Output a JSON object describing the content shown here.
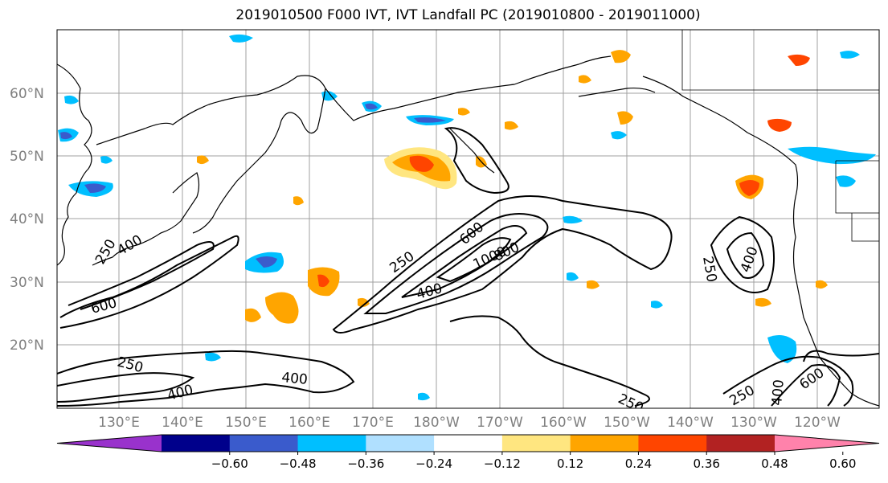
{
  "title": "2019010500 F000 IVT, IVT Landfall PC (2019010800 - 2019011000)",
  "lat_labels": [
    "60°N",
    "50°N",
    "40°N",
    "30°N",
    "20°N"
  ],
  "lon_labels": [
    "130°E",
    "140°E",
    "150°E",
    "160°E",
    "170°E",
    "180°W",
    "170°W",
    "160°W",
    "150°W",
    "140°W",
    "130°W",
    "120°W"
  ],
  "contour_labels": [
    "250",
    "400",
    "600",
    "250",
    "600",
    "800",
    "1000",
    "400",
    "250",
    "400",
    "250",
    "400",
    "400",
    "250",
    "250",
    "600",
    "400"
  ],
  "colorbar": {
    "ticks": [
      "−0.60",
      "−0.48",
      "−0.36",
      "−0.24",
      "−0.12",
      "0.12",
      "0.24",
      "0.36",
      "0.48",
      "0.60"
    ],
    "colors": [
      "#9932cc",
      "#00008b",
      "#3a5bcc",
      "#00bfff",
      "#b0e0ff",
      "#ffffff",
      "#ffe680",
      "#ffa500",
      "#ff4500",
      "#b22222",
      "#ff82ab"
    ]
  }
}
